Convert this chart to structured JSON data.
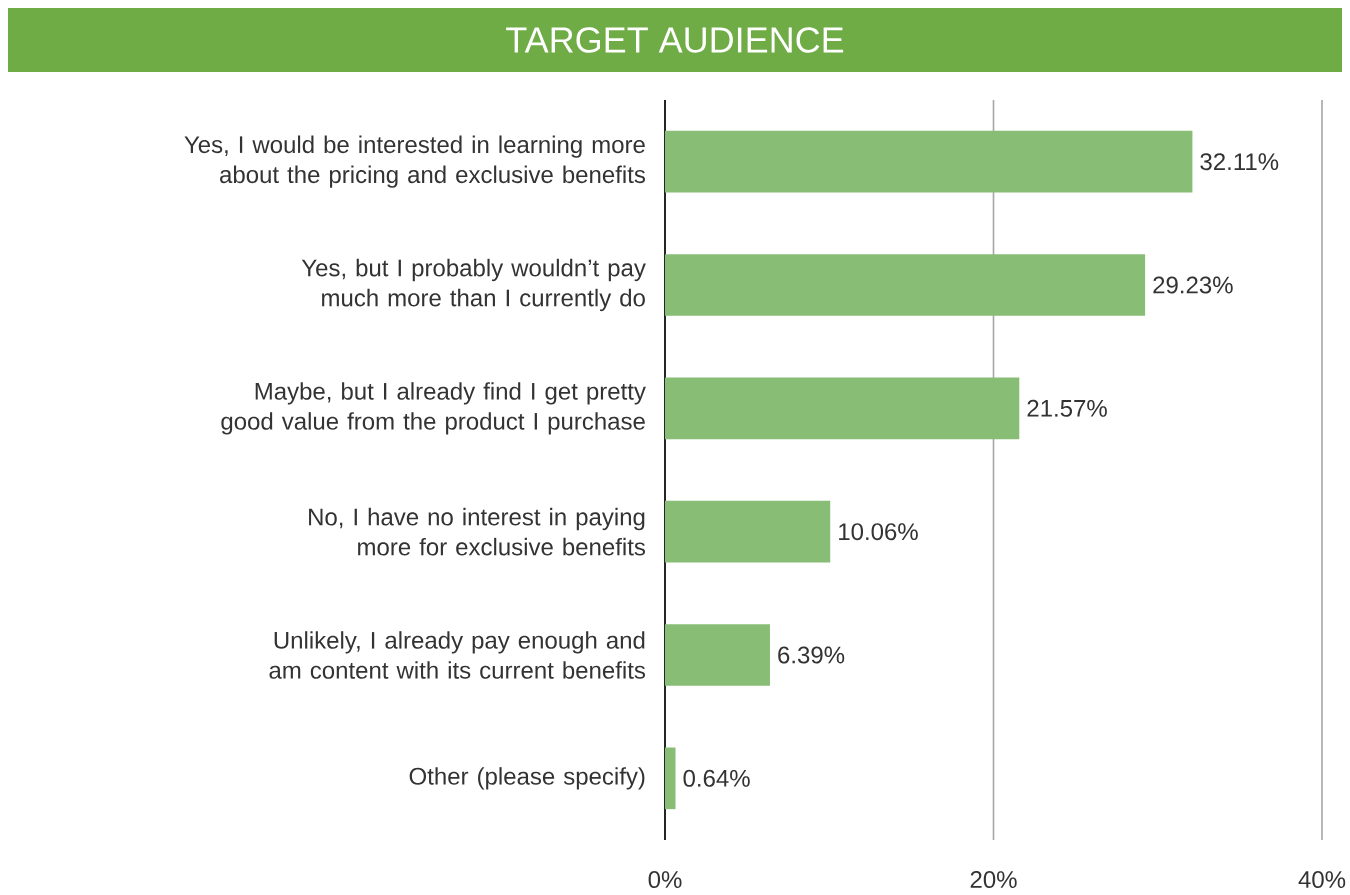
{
  "chart_data": {
    "type": "bar",
    "orientation": "horizontal",
    "title": "TARGET AUDIENCE",
    "categories": [
      "Yes, I would be interested in learning more about the pricing and exclusive benefits",
      "Yes, but I probably wouldn’t pay much more than I currently do",
      "Maybe, but I already find I get pretty good value from the product I purchase",
      "No, I have no interest in paying more for exclusive benefits",
      "Unlikely, I already pay enough and am content with its current benefits",
      "Other (please specify)"
    ],
    "values": [
      32.11,
      29.23,
      21.57,
      10.06,
      6.39,
      0.64
    ],
    "value_labels": [
      "32.11%",
      "29.23%",
      "21.57%",
      "10.06%",
      "6.39%",
      "0.64%"
    ],
    "color": "#88bd75",
    "xlim": [
      0,
      40
    ],
    "xticks": [
      {
        "value": 0,
        "label": "0%"
      },
      {
        "value": 20,
        "label": "20%"
      },
      {
        "value": 40,
        "label": "40%"
      }
    ],
    "grid": "x"
  }
}
